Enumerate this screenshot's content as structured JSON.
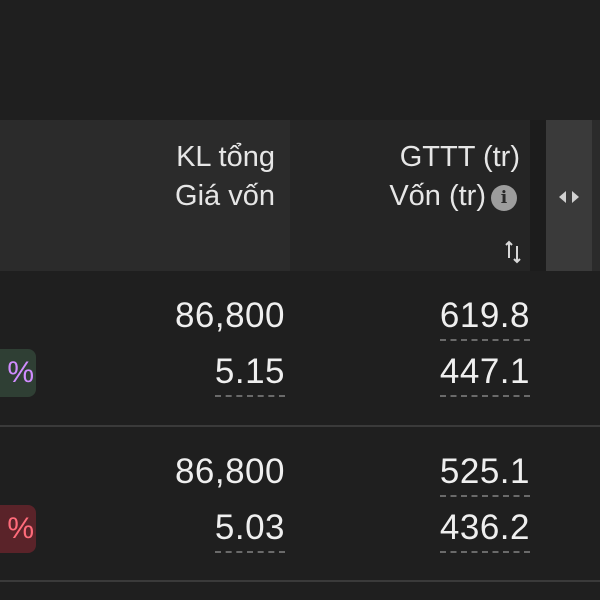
{
  "header": {
    "col1_line1": "KL tổng",
    "col1_line2": "Giá vốn",
    "col2_line1": "GTTT (tr)",
    "col2_line2": "Vốn (tr)",
    "info_icon": "info-icon",
    "sort_icon": "sort-icon",
    "resize_icon": "resize-handle-icon"
  },
  "rows": [
    {
      "kl_tong": "86,800",
      "gia_von": "5.15",
      "gttt": "619.8",
      "von": "447.1",
      "badge_text": "%",
      "badge_status": "up"
    },
    {
      "kl_tong": "86,800",
      "gia_von": "5.03",
      "gttt": "525.1",
      "von": "436.2",
      "badge_text": "%",
      "badge_status": "down"
    }
  ],
  "colors": {
    "background": "#1f1f1f",
    "header_background": "#2b2b2b",
    "badge_up_text": "#d08cff",
    "badge_down_text": "#ff6b7a"
  }
}
